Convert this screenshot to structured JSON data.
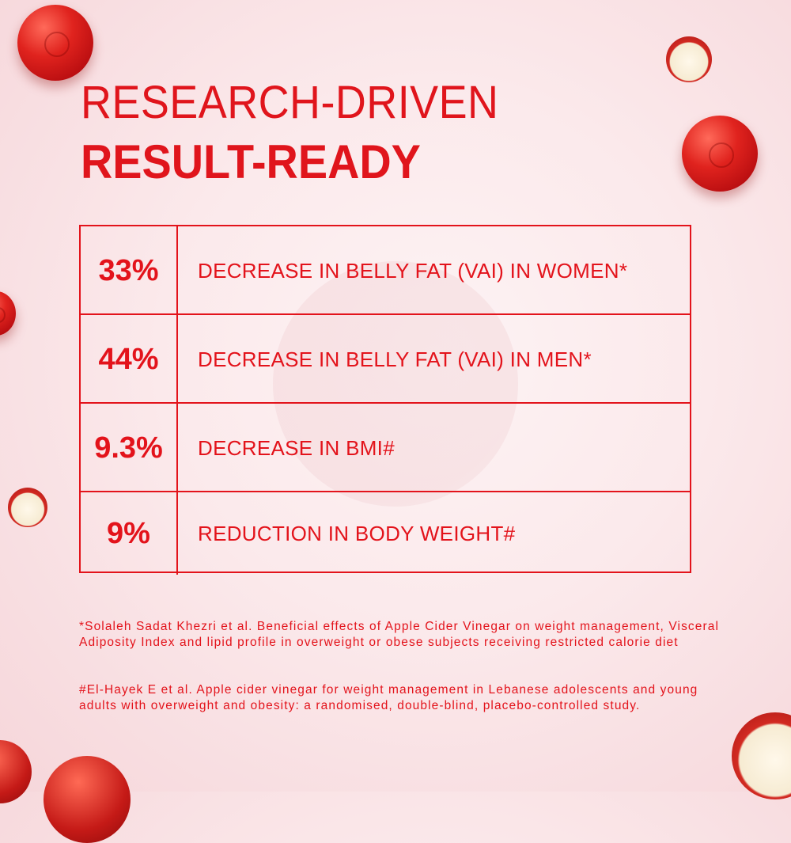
{
  "headline": {
    "line1": "RESEARCH-DRIVEN",
    "line2": "RESULT-READY"
  },
  "stats": [
    {
      "value": "33%",
      "label": "DECREASE IN BELLY FAT (VAI) IN WOMEN*"
    },
    {
      "value": "44%",
      "label": "DECREASE IN BELLY FAT (VAI) IN MEN*"
    },
    {
      "value": "9.3%",
      "label": "DECREASE IN BMI#"
    },
    {
      "value": "9%",
      "label": "REDUCTION IN BODY WEIGHT#"
    }
  ],
  "footnotes": [
    "*Solaleh Sadat Khezri et al. Beneficial effects of Apple Cider Vinegar on weight management, Visceral Adiposity Index and lipid profile in overweight or obese subjects receiving restricted calorie diet",
    "#El-Hayek E et al. Apple cider vinegar for weight management in Lebanese adolescents and young adults with overweight and obesity: a randomised, double-blind, placebo-controlled study."
  ],
  "colors": {
    "accent": "#e3131b",
    "background": "#fbe9eb"
  }
}
